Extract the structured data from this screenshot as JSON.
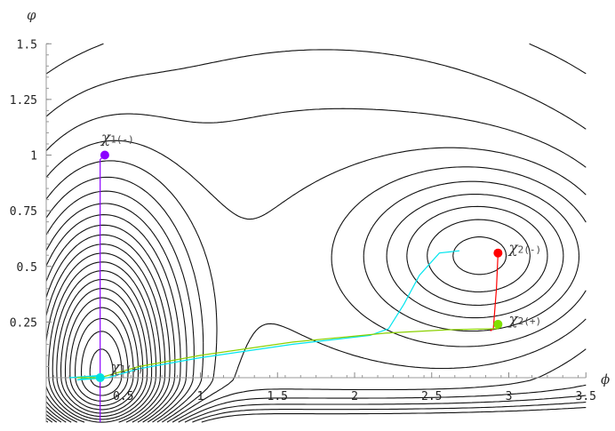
{
  "chart_data": {
    "type": "contour",
    "xlabel": "ϕ",
    "ylabel": "φ",
    "xlim": [
      0,
      3.5
    ],
    "ylim": [
      -0.2,
      1.5
    ],
    "xticks": [
      "0.5",
      "1",
      "1.5",
      "2",
      "2.5",
      "3",
      "3.5"
    ],
    "xtick_values": [
      0.5,
      1,
      1.5,
      2,
      2.5,
      3,
      3.5
    ],
    "yticks": [
      "0.25",
      "0.5",
      "0.75",
      "1",
      "1.25",
      "1.5"
    ],
    "ytick_values": [
      0.25,
      0.5,
      0.75,
      1,
      1.25,
      1.5
    ],
    "grid": false,
    "points": [
      {
        "label": "χ1",
        "sub": "(-)",
        "x": 0.38,
        "y": 1.0,
        "color": "#8b00ff"
      },
      {
        "label": "χ1",
        "sub": "(+)",
        "x": 0.35,
        "y": 0.0,
        "color": "#00e0e0"
      },
      {
        "label": "χ2",
        "sub": "(-)",
        "x": 2.93,
        "y": 0.56,
        "color": "#ff0000"
      },
      {
        "label": "χ2",
        "sub": "(+)",
        "x": 2.93,
        "y": 0.24,
        "color": "#80e000"
      }
    ],
    "trajectories": [
      {
        "color": "#8b00ff",
        "points": [
          [
            0.38,
            1.0
          ],
          [
            0.35,
            0.98
          ],
          [
            0.35,
            0.9
          ],
          [
            0.35,
            0.5
          ],
          [
            0.35,
            0.1
          ],
          [
            0.35,
            -0.2
          ]
        ]
      },
      {
        "color": "#00e5ee",
        "points": [
          [
            2.68,
            0.57
          ],
          [
            2.55,
            0.56
          ],
          [
            2.42,
            0.46
          ],
          [
            2.32,
            0.33
          ],
          [
            2.22,
            0.22
          ],
          [
            2.1,
            0.19
          ],
          [
            1.6,
            0.15
          ],
          [
            1.0,
            0.09
          ],
          [
            0.6,
            0.04
          ],
          [
            0.4,
            0.0
          ],
          [
            0.2,
            -0.01
          ],
          [
            0.35,
            0.01
          ],
          [
            0.15,
            0.0
          ]
        ]
      },
      {
        "color": "#ff0000",
        "points": [
          [
            2.93,
            0.56
          ],
          [
            2.92,
            0.4
          ],
          [
            2.9,
            0.22
          ],
          [
            2.88,
            0.21
          ]
        ]
      },
      {
        "color": "#8ad000",
        "points": [
          [
            2.93,
            0.22
          ],
          [
            2.6,
            0.215
          ],
          [
            2.2,
            0.2
          ],
          [
            1.6,
            0.16
          ],
          [
            1.0,
            0.1
          ],
          [
            0.6,
            0.05
          ],
          [
            0.35,
            0.0
          ],
          [
            0.2,
            0.0
          ]
        ]
      }
    ]
  }
}
